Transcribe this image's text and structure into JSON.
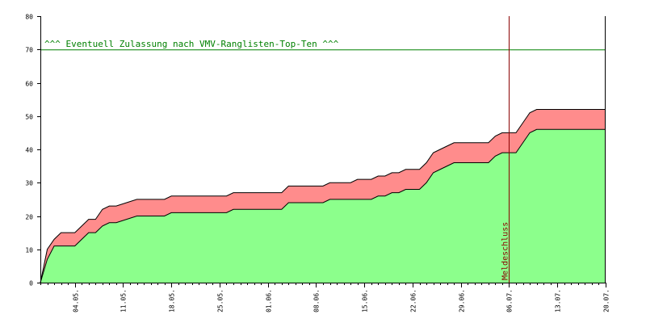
{
  "chart_data": {
    "type": "area",
    "title": "",
    "xlabel": "",
    "ylabel": "",
    "ylim": [
      0,
      80
    ],
    "xlim": [
      "2025-04-29",
      "2025-07-20"
    ],
    "y_ticks": [
      0,
      10,
      20,
      30,
      40,
      50,
      60,
      70,
      80
    ],
    "x_ticks": [
      {
        "date": "2025-05-04",
        "label": "04.05."
      },
      {
        "date": "2025-05-11",
        "label": "11.05."
      },
      {
        "date": "2025-05-18",
        "label": "18.05."
      },
      {
        "date": "2025-05-25",
        "label": "25.05."
      },
      {
        "date": "2025-06-01",
        "label": "01.06."
      },
      {
        "date": "2025-06-08",
        "label": "08.06."
      },
      {
        "date": "2025-06-15",
        "label": "15.06."
      },
      {
        "date": "2025-06-22",
        "label": "22.06."
      },
      {
        "date": "2025-06-29",
        "label": "29.06."
      },
      {
        "date": "2025-07-06",
        "label": "06.07."
      },
      {
        "date": "2025-07-13",
        "label": "13.07."
      },
      {
        "date": "2025-07-20",
        "label": "20.07."
      }
    ],
    "grid": false,
    "legend": "none",
    "x_axis_type": "date",
    "reference_line": {
      "y": 70,
      "label": "^^^ Eventuell Zulassung nach VMV-Ranglisten-Top-Ten ^^^",
      "color": "#008000"
    },
    "vertical_line": {
      "x": "2025-07-06",
      "label": "Meldeschluss",
      "color": "#8b0000"
    },
    "series": [
      {
        "color": "#ff8c8c",
        "x": [
          "2025-04-29",
          "2025-04-30",
          "2025-05-01",
          "2025-05-02",
          "2025-05-04",
          "2025-05-05",
          "2025-05-06",
          "2025-05-07",
          "2025-05-08",
          "2025-05-09",
          "2025-05-10",
          "2025-05-13",
          "2025-05-14",
          "2025-05-17",
          "2025-05-18",
          "2025-05-26",
          "2025-05-27",
          "2025-06-03",
          "2025-06-04",
          "2025-06-09",
          "2025-06-10",
          "2025-06-13",
          "2025-06-14",
          "2025-06-16",
          "2025-06-17",
          "2025-06-18",
          "2025-06-19",
          "2025-06-20",
          "2025-06-21",
          "2025-06-23",
          "2025-06-24",
          "2025-06-25",
          "2025-06-26",
          "2025-06-27",
          "2025-06-28",
          "2025-07-03",
          "2025-07-04",
          "2025-07-05",
          "2025-07-07",
          "2025-07-08",
          "2025-07-09",
          "2025-07-10",
          "2025-07-20"
        ],
        "values": [
          0,
          10,
          13,
          15,
          15,
          17,
          19,
          19,
          22,
          23,
          23,
          25,
          25,
          25,
          26,
          26,
          27,
          27,
          29,
          29,
          30,
          30,
          31,
          31,
          32,
          32,
          33,
          33,
          34,
          34,
          36,
          39,
          40,
          41,
          42,
          42,
          44,
          45,
          45,
          48,
          51,
          52,
          52
        ]
      },
      {
        "color": "#8cff8c",
        "x": [
          "2025-04-29",
          "2025-04-30",
          "2025-05-01",
          "2025-05-02",
          "2025-05-04",
          "2025-05-05",
          "2025-05-06",
          "2025-05-07",
          "2025-05-08",
          "2025-05-09",
          "2025-05-10",
          "2025-05-13",
          "2025-05-14",
          "2025-05-17",
          "2025-05-18",
          "2025-05-26",
          "2025-05-27",
          "2025-06-03",
          "2025-06-04",
          "2025-06-09",
          "2025-06-10",
          "2025-06-13",
          "2025-06-14",
          "2025-06-16",
          "2025-06-17",
          "2025-06-18",
          "2025-06-19",
          "2025-06-20",
          "2025-06-21",
          "2025-06-23",
          "2025-06-24",
          "2025-06-25",
          "2025-06-26",
          "2025-06-27",
          "2025-06-28",
          "2025-07-03",
          "2025-07-04",
          "2025-07-05",
          "2025-07-07",
          "2025-07-08",
          "2025-07-09",
          "2025-07-10",
          "2025-07-20"
        ],
        "values": [
          0,
          7,
          11,
          11,
          11,
          13,
          15,
          15,
          17,
          18,
          18,
          20,
          20,
          20,
          21,
          21,
          22,
          22,
          24,
          24,
          25,
          25,
          25,
          25,
          26,
          26,
          27,
          27,
          28,
          28,
          30,
          33,
          34,
          35,
          36,
          36,
          38,
          39,
          39,
          42,
          45,
          46,
          46
        ]
      }
    ]
  }
}
